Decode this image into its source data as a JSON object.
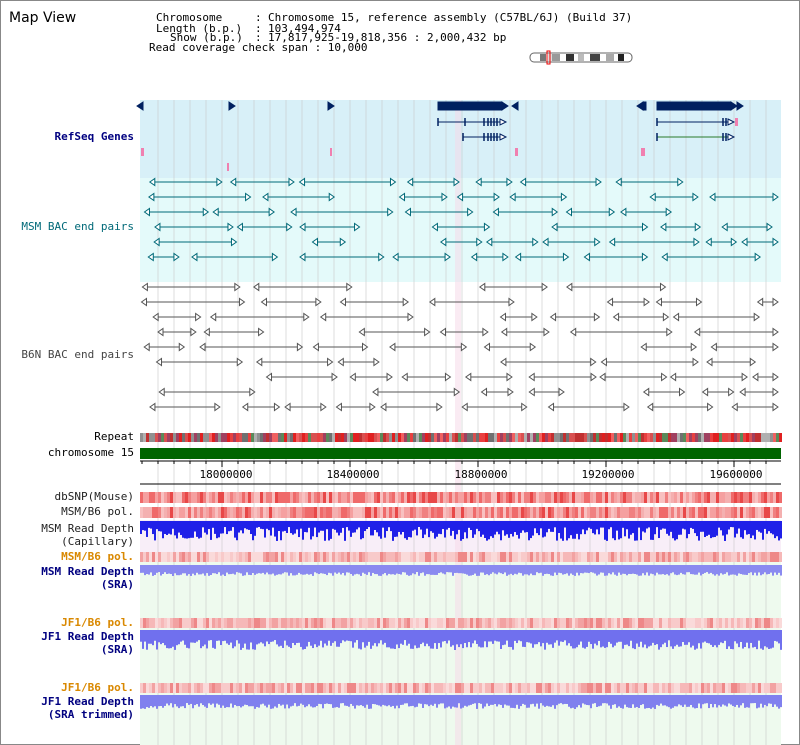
{
  "app": {
    "title": "Map View"
  },
  "header": {
    "line1_key": "Chromosome",
    "line1_val": "Chromosome 15, reference assembly (C57BL/6J) (Build 37)",
    "line2_key": "Length (b.p.)",
    "line2_val": "103,494,974",
    "line3_key": "Show (b.p.)",
    "line3_val": "17,817,925-19,818,356 : 2,000,432 bp",
    "line4": "Read coverage check span : 10,000"
  },
  "tracks": {
    "refseq": "RefSeq Genes",
    "msm_bac": "MSM BAC end pairs",
    "b6n_bac": "B6N BAC end pairs",
    "repeat": "Repeat",
    "chromosome": "chromosome 15",
    "dbsnp": "dbSNP(Mouse)",
    "msm_pol1": "MSM/B6 pol.",
    "msm_depth_cap_1": "MSM Read Depth",
    "msm_depth_cap_2": "(Capillary)",
    "msm_pol2": "MSM/B6 pol.",
    "msm_depth_sra_1": "MSM Read Depth",
    "msm_depth_sra_2": "(SRA)",
    "jf1_pol1": "JF1/B6 pol.",
    "jf1_depth_sra_1": "JF1 Read Depth",
    "jf1_depth_sra_2": "(SRA)",
    "jf1_pol2": "JF1/B6 pol.",
    "jf1_depth_trim_1": "JF1 Read Depth",
    "jf1_depth_trim_2": "(SRA trimmed)"
  },
  "axis": {
    "ticks": [
      "18000000",
      "18400000",
      "18800000",
      "19200000",
      "19600000"
    ],
    "range": [
      17817925,
      19818356
    ]
  },
  "colors": {
    "refseq_bg": "#d8f0f8",
    "msm_bg": "#e4fafa",
    "depth_bg": "#eefaee",
    "chromosome": "#006400",
    "gene": "#002060",
    "bac_msm": "#006978",
    "bac_b6n": "#555555"
  }
}
